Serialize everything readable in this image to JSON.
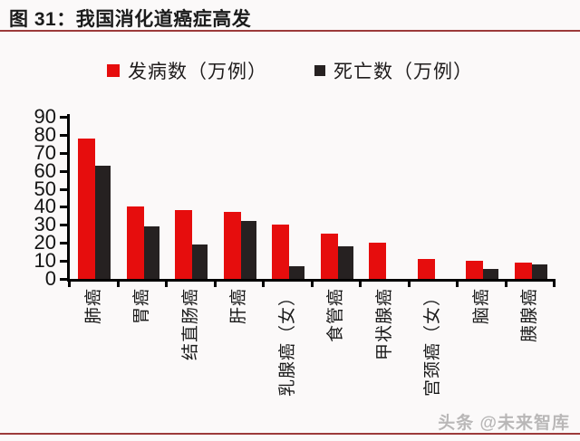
{
  "figure": {
    "title": "图 31：我国消化道癌症高发",
    "watermark": "头条 @未来智库"
  },
  "colors": {
    "accent_rule": "#9c3a3a",
    "incidence_red": "#e60d0d",
    "death_black": "#262121",
    "axis_black": "#000000",
    "watermark_gray": "#b9b7b7"
  },
  "chart_data": {
    "type": "bar",
    "title": "我国消化道癌症高发",
    "categories": [
      "肺癌",
      "胃癌",
      "结直肠癌",
      "肝癌",
      "乳腺癌（女）",
      "食管癌",
      "甲状腺癌",
      "宫颈癌（女）",
      "脑癌",
      "胰腺癌"
    ],
    "series": [
      {
        "name": "发病数（万例）",
        "color": "#e60d0d",
        "values": [
          78,
          40,
          38,
          37,
          30,
          25,
          20,
          11,
          10,
          9
        ]
      },
      {
        "name": "死亡数（万例）",
        "color": "#262121",
        "values": [
          63,
          29,
          19,
          32,
          7,
          18,
          0,
          0,
          5.5,
          8
        ]
      }
    ],
    "xlabel": "",
    "ylabel": "",
    "ylim": [
      0,
      90
    ],
    "yticks": [
      0,
      10,
      20,
      30,
      40,
      50,
      60,
      70,
      80,
      90
    ],
    "grid": false,
    "legend_position": "top-center",
    "x_label_rotation": -90
  }
}
